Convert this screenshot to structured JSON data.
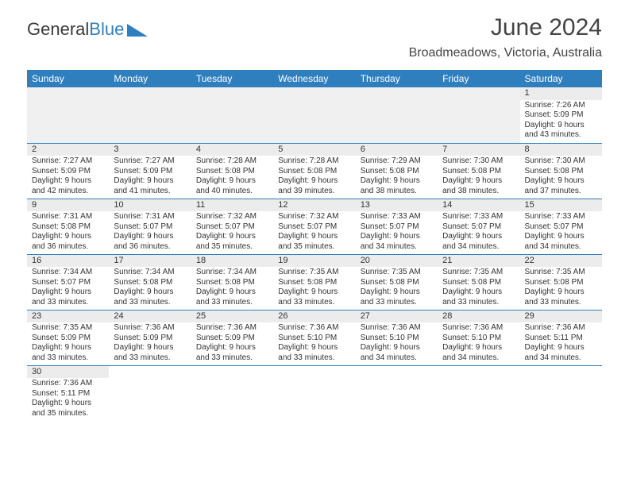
{
  "logo": {
    "part1": "General",
    "part2": "Blue",
    "triangle_color": "#2f7fbf"
  },
  "title": "June 2024",
  "subtitle": "Broadmeadows, Victoria, Australia",
  "colors": {
    "header_bg": "#2f7fbf",
    "header_text": "#ffffff",
    "daynum_bg": "#ececec",
    "row_divider": "#2f7fbf",
    "text": "#333333",
    "page_bg": "#ffffff"
  },
  "day_headers": [
    "Sunday",
    "Monday",
    "Tuesday",
    "Wednesday",
    "Thursday",
    "Friday",
    "Saturday"
  ],
  "weeks": [
    [
      null,
      null,
      null,
      null,
      null,
      null,
      {
        "n": "1",
        "sunrise": "7:26 AM",
        "sunset": "5:09 PM",
        "daylight": "9 hours and 43 minutes."
      }
    ],
    [
      {
        "n": "2",
        "sunrise": "7:27 AM",
        "sunset": "5:09 PM",
        "daylight": "9 hours and 42 minutes."
      },
      {
        "n": "3",
        "sunrise": "7:27 AM",
        "sunset": "5:09 PM",
        "daylight": "9 hours and 41 minutes."
      },
      {
        "n": "4",
        "sunrise": "7:28 AM",
        "sunset": "5:08 PM",
        "daylight": "9 hours and 40 minutes."
      },
      {
        "n": "5",
        "sunrise": "7:28 AM",
        "sunset": "5:08 PM",
        "daylight": "9 hours and 39 minutes."
      },
      {
        "n": "6",
        "sunrise": "7:29 AM",
        "sunset": "5:08 PM",
        "daylight": "9 hours and 38 minutes."
      },
      {
        "n": "7",
        "sunrise": "7:30 AM",
        "sunset": "5:08 PM",
        "daylight": "9 hours and 38 minutes."
      },
      {
        "n": "8",
        "sunrise": "7:30 AM",
        "sunset": "5:08 PM",
        "daylight": "9 hours and 37 minutes."
      }
    ],
    [
      {
        "n": "9",
        "sunrise": "7:31 AM",
        "sunset": "5:08 PM",
        "daylight": "9 hours and 36 minutes."
      },
      {
        "n": "10",
        "sunrise": "7:31 AM",
        "sunset": "5:07 PM",
        "daylight": "9 hours and 36 minutes."
      },
      {
        "n": "11",
        "sunrise": "7:32 AM",
        "sunset": "5:07 PM",
        "daylight": "9 hours and 35 minutes."
      },
      {
        "n": "12",
        "sunrise": "7:32 AM",
        "sunset": "5:07 PM",
        "daylight": "9 hours and 35 minutes."
      },
      {
        "n": "13",
        "sunrise": "7:33 AM",
        "sunset": "5:07 PM",
        "daylight": "9 hours and 34 minutes."
      },
      {
        "n": "14",
        "sunrise": "7:33 AM",
        "sunset": "5:07 PM",
        "daylight": "9 hours and 34 minutes."
      },
      {
        "n": "15",
        "sunrise": "7:33 AM",
        "sunset": "5:07 PM",
        "daylight": "9 hours and 34 minutes."
      }
    ],
    [
      {
        "n": "16",
        "sunrise": "7:34 AM",
        "sunset": "5:07 PM",
        "daylight": "9 hours and 33 minutes."
      },
      {
        "n": "17",
        "sunrise": "7:34 AM",
        "sunset": "5:08 PM",
        "daylight": "9 hours and 33 minutes."
      },
      {
        "n": "18",
        "sunrise": "7:34 AM",
        "sunset": "5:08 PM",
        "daylight": "9 hours and 33 minutes."
      },
      {
        "n": "19",
        "sunrise": "7:35 AM",
        "sunset": "5:08 PM",
        "daylight": "9 hours and 33 minutes."
      },
      {
        "n": "20",
        "sunrise": "7:35 AM",
        "sunset": "5:08 PM",
        "daylight": "9 hours and 33 minutes."
      },
      {
        "n": "21",
        "sunrise": "7:35 AM",
        "sunset": "5:08 PM",
        "daylight": "9 hours and 33 minutes."
      },
      {
        "n": "22",
        "sunrise": "7:35 AM",
        "sunset": "5:08 PM",
        "daylight": "9 hours and 33 minutes."
      }
    ],
    [
      {
        "n": "23",
        "sunrise": "7:35 AM",
        "sunset": "5:09 PM",
        "daylight": "9 hours and 33 minutes."
      },
      {
        "n": "24",
        "sunrise": "7:36 AM",
        "sunset": "5:09 PM",
        "daylight": "9 hours and 33 minutes."
      },
      {
        "n": "25",
        "sunrise": "7:36 AM",
        "sunset": "5:09 PM",
        "daylight": "9 hours and 33 minutes."
      },
      {
        "n": "26",
        "sunrise": "7:36 AM",
        "sunset": "5:10 PM",
        "daylight": "9 hours and 33 minutes."
      },
      {
        "n": "27",
        "sunrise": "7:36 AM",
        "sunset": "5:10 PM",
        "daylight": "9 hours and 34 minutes."
      },
      {
        "n": "28",
        "sunrise": "7:36 AM",
        "sunset": "5:10 PM",
        "daylight": "9 hours and 34 minutes."
      },
      {
        "n": "29",
        "sunrise": "7:36 AM",
        "sunset": "5:11 PM",
        "daylight": "9 hours and 34 minutes."
      }
    ],
    [
      {
        "n": "30",
        "sunrise": "7:36 AM",
        "sunset": "5:11 PM",
        "daylight": "9 hours and 35 minutes."
      },
      null,
      null,
      null,
      null,
      null,
      null
    ]
  ],
  "labels": {
    "sunrise": "Sunrise: ",
    "sunset": "Sunset: ",
    "daylight": "Daylight: "
  }
}
